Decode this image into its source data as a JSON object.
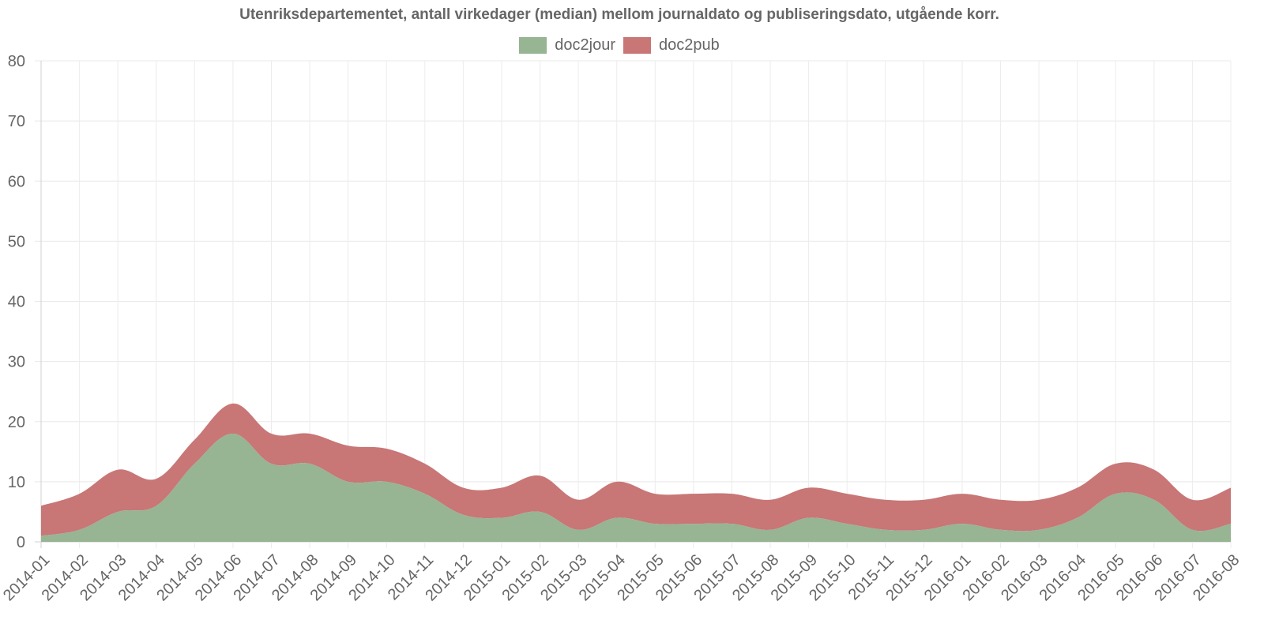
{
  "chart_data": {
    "type": "area",
    "stacked": true,
    "title": "Utenriksdepartementet, antall virkedager (median) mellom journaldato og publiseringsdato, utgående korr.",
    "xlabel": "",
    "ylabel": "",
    "ylim": [
      0,
      80
    ],
    "yticks": [
      "0",
      "10",
      "20",
      "30",
      "40",
      "50",
      "60",
      "70",
      "80"
    ],
    "grid": true,
    "legend_position": "top-center",
    "categories": [
      "2014-01",
      "2014-02",
      "2014-03",
      "2014-04",
      "2014-05",
      "2014-06",
      "2014-07",
      "2014-08",
      "2014-09",
      "2014-10",
      "2014-11",
      "2014-12",
      "2015-01",
      "2015-02",
      "2015-03",
      "2015-04",
      "2015-05",
      "2015-06",
      "2015-07",
      "2015-08",
      "2015-09",
      "2015-10",
      "2015-11",
      "2015-12",
      "2016-01",
      "2016-02",
      "2016-03",
      "2016-04",
      "2016-05",
      "2016-06",
      "2016-07",
      "2016-08"
    ],
    "series": [
      {
        "name": "doc2jour",
        "color": "#97b493",
        "values": [
          1,
          2,
          5,
          6,
          13,
          18,
          13,
          13,
          10,
          10,
          8,
          4.5,
          4,
          5,
          2,
          4,
          3,
          3,
          3,
          2,
          4,
          3,
          2,
          2,
          3,
          2,
          2,
          4,
          8,
          7,
          2,
          3
        ]
      },
      {
        "name": "doc2pub",
        "color": "#c87676",
        "values": [
          5,
          6,
          7,
          4.5,
          4,
          5,
          5,
          5,
          6,
          5.5,
          5,
          4.5,
          5,
          6,
          5,
          6,
          5,
          5,
          5,
          5,
          5,
          5,
          5,
          5,
          5,
          5,
          5,
          5,
          5,
          5,
          5,
          6
        ]
      }
    ]
  }
}
